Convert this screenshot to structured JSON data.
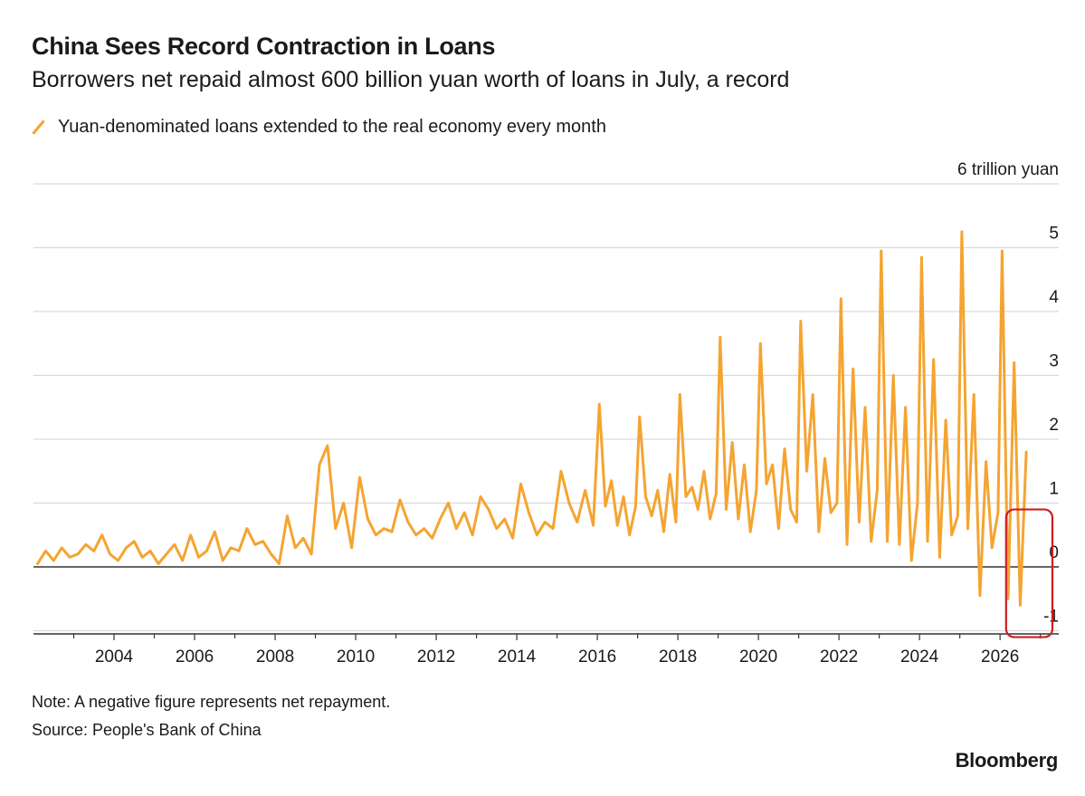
{
  "header": {
    "title": "China Sees Record Contraction in Loans",
    "subtitle": "Borrowers net repaid almost 600 billion yuan worth of loans in July, a record"
  },
  "legend": {
    "label": "Yuan-denominated loans extended to the real economy every month",
    "icon": "orange-slash-line-icon"
  },
  "footer": {
    "note": "Note: A negative figure represents net repayment.",
    "source": "Source: People's Bank of China",
    "brand": "Bloomberg"
  },
  "colors": {
    "series": "#f5a431",
    "gridline": "#d9d9d9",
    "zero_line": "#333333",
    "highlight_box": "#cc1f1f",
    "text": "#1a1a1a"
  },
  "chart_data": {
    "type": "line",
    "title": "China Sees Record Contraction in Loans",
    "subtitle": "Borrowers net repaid almost 600 billion yuan worth of loans in July, a record",
    "ylabel": "6 trillion yuan",
    "unit_label": "6 trillion yuan",
    "xlim": [
      2002,
      2027.3
    ],
    "ylim": [
      -1,
      6
    ],
    "grid": true,
    "legend_placement": "top-left",
    "y_ticks": [
      {
        "value": 6,
        "label": "6 trillion yuan"
      },
      {
        "value": 5,
        "label": "5"
      },
      {
        "value": 4,
        "label": "4"
      },
      {
        "value": 3,
        "label": "3"
      },
      {
        "value": 2,
        "label": "2"
      },
      {
        "value": 1,
        "label": "1"
      },
      {
        "value": 0,
        "label": "0"
      },
      {
        "value": -1,
        "label": "-1"
      }
    ],
    "x_ticks": [
      {
        "value": 2004,
        "label": "2004"
      },
      {
        "value": 2006,
        "label": "2006"
      },
      {
        "value": 2008,
        "label": "2008"
      },
      {
        "value": 2010,
        "label": "2010"
      },
      {
        "value": 2012,
        "label": "2012"
      },
      {
        "value": 2014,
        "label": "2014"
      },
      {
        "value": 2016,
        "label": "2016"
      },
      {
        "value": 2018,
        "label": "2018"
      },
      {
        "value": 2020,
        "label": "2020"
      },
      {
        "value": 2022,
        "label": "2022"
      },
      {
        "value": 2024,
        "label": "2024"
      },
      {
        "value": 2026,
        "label": "2026"
      }
    ],
    "annotations": [
      {
        "type": "highlight-box",
        "x_range": [
          2026.15,
          2027.3
        ],
        "y_range": [
          -1.1,
          0.9
        ],
        "color": "#cc1f1f"
      }
    ],
    "series": [
      {
        "name": "Yuan-denominated loans extended to the real economy every month",
        "color": "#f5a431",
        "x": [
          2002.1,
          2002.3,
          2002.5,
          2002.7,
          2002.9,
          2003.1,
          2003.3,
          2003.5,
          2003.7,
          2003.9,
          2004.1,
          2004.3,
          2004.5,
          2004.7,
          2004.9,
          2005.1,
          2005.3,
          2005.5,
          2005.7,
          2005.9,
          2006.1,
          2006.3,
          2006.5,
          2006.7,
          2006.9,
          2007.1,
          2007.3,
          2007.5,
          2007.7,
          2007.9,
          2008.1,
          2008.3,
          2008.5,
          2008.7,
          2008.9,
          2009.1,
          2009.3,
          2009.5,
          2009.7,
          2009.9,
          2010.1,
          2010.3,
          2010.5,
          2010.7,
          2010.9,
          2011.1,
          2011.3,
          2011.5,
          2011.7,
          2011.9,
          2012.1,
          2012.3,
          2012.5,
          2012.7,
          2012.9,
          2013.1,
          2013.3,
          2013.5,
          2013.7,
          2013.9,
          2014.1,
          2014.3,
          2014.5,
          2014.7,
          2014.9,
          2015.1,
          2015.3,
          2015.5,
          2015.7,
          2015.9,
          2016.05,
          2016.2,
          2016.35,
          2016.5,
          2016.65,
          2016.8,
          2016.95,
          2017.05,
          2017.2,
          2017.35,
          2017.5,
          2017.65,
          2017.8,
          2017.95,
          2018.05,
          2018.2,
          2018.35,
          2018.5,
          2018.65,
          2018.8,
          2018.95,
          2019.05,
          2019.2,
          2019.35,
          2019.5,
          2019.65,
          2019.8,
          2019.95,
          2020.05,
          2020.2,
          2020.35,
          2020.5,
          2020.65,
          2020.8,
          2020.95,
          2021.05,
          2021.2,
          2021.35,
          2021.5,
          2021.65,
          2021.8,
          2021.95,
          2022.05,
          2022.2,
          2022.35,
          2022.5,
          2022.65,
          2022.8,
          2022.95,
          2023.05,
          2023.2,
          2023.35,
          2023.5,
          2023.65,
          2023.8,
          2023.95,
          2024.05,
          2024.2,
          2024.35,
          2024.5,
          2024.65,
          2024.8,
          2024.95,
          2025.05,
          2025.2,
          2025.35,
          2025.5,
          2025.65,
          2025.8,
          2025.95,
          2026.05,
          2026.2,
          2026.35,
          2026.5,
          2026.65
        ],
        "y": [
          0.05,
          0.25,
          0.1,
          0.3,
          0.15,
          0.2,
          0.35,
          0.25,
          0.5,
          0.2,
          0.1,
          0.3,
          0.4,
          0.15,
          0.25,
          0.05,
          0.2,
          0.35,
          0.1,
          0.5,
          0.15,
          0.25,
          0.55,
          0.1,
          0.3,
          0.25,
          0.6,
          0.35,
          0.4,
          0.2,
          0.05,
          0.8,
          0.3,
          0.45,
          0.2,
          1.6,
          1.9,
          0.6,
          1.0,
          0.3,
          1.4,
          0.75,
          0.5,
          0.6,
          0.55,
          1.05,
          0.7,
          0.5,
          0.6,
          0.45,
          0.75,
          1.0,
          0.6,
          0.85,
          0.5,
          1.1,
          0.9,
          0.6,
          0.75,
          0.45,
          1.3,
          0.85,
          0.5,
          0.7,
          0.6,
          1.5,
          1.0,
          0.7,
          1.2,
          0.65,
          2.55,
          0.95,
          1.35,
          0.65,
          1.1,
          0.5,
          0.95,
          2.35,
          1.1,
          0.8,
          1.2,
          0.55,
          1.45,
          0.7,
          2.7,
          1.1,
          1.25,
          0.9,
          1.5,
          0.75,
          1.15,
          3.6,
          0.9,
          1.95,
          0.75,
          1.6,
          0.55,
          1.2,
          3.5,
          1.3,
          1.6,
          0.6,
          1.85,
          0.9,
          0.7,
          3.85,
          1.5,
          2.7,
          0.55,
          1.7,
          0.85,
          1.0,
          4.2,
          0.35,
          3.1,
          0.7,
          2.5,
          0.4,
          1.2,
          4.95,
          0.4,
          3.0,
          0.35,
          2.5,
          0.1,
          1.0,
          4.85,
          0.4,
          3.25,
          0.15,
          2.3,
          0.5,
          0.8,
          5.25,
          0.6,
          2.7,
          -0.45,
          1.65,
          0.3,
          0.85,
          4.95,
          -0.5,
          3.2,
          -0.6,
          1.8
        ]
      }
    ]
  }
}
